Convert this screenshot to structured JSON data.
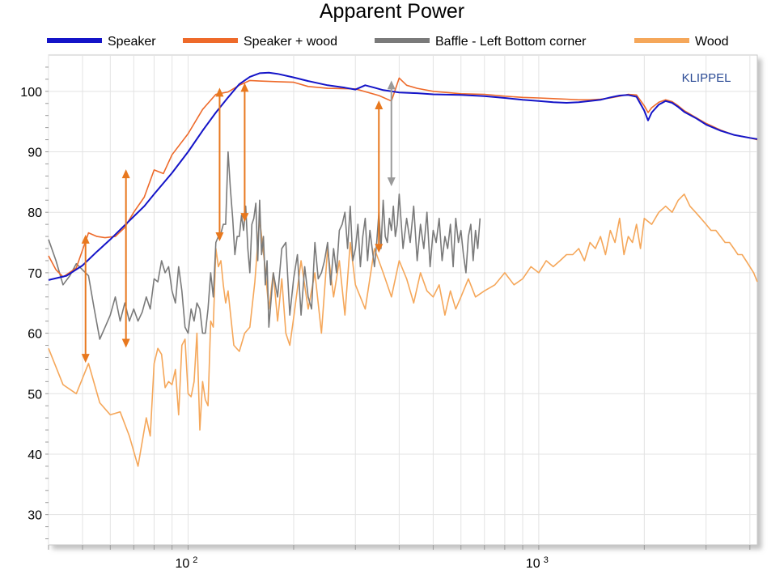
{
  "chart_data": {
    "type": "line",
    "title": "Apparent Power",
    "watermark": "KLIPPEL",
    "xlabel": "",
    "ylabel": "",
    "x_scale": "log",
    "xlim": [
      40,
      4200
    ],
    "ylim": [
      25,
      106
    ],
    "grid": true,
    "legend_position": "top",
    "x_ticks": [
      {
        "value": 100,
        "base": "10",
        "exp": "2"
      },
      {
        "value": 1000,
        "base": "10",
        "exp": "3"
      }
    ],
    "y_ticks": [
      30,
      40,
      50,
      60,
      70,
      80,
      90,
      100
    ],
    "series": [
      {
        "name": "Speaker",
        "color": "#1414c8",
        "x": [
          40,
          45,
          50,
          55,
          60,
          65,
          70,
          75,
          80,
          90,
          100,
          110,
          120,
          130,
          140,
          150,
          160,
          170,
          180,
          200,
          220,
          250,
          280,
          300,
          320,
          340,
          360,
          380,
          400,
          450,
          500,
          600,
          700,
          800,
          900,
          1000,
          1100,
          1200,
          1300,
          1400,
          1500,
          1600,
          1700,
          1800,
          1900,
          2000,
          2050,
          2100,
          2200,
          2300,
          2400,
          2500,
          2600,
          2800,
          3000,
          3300,
          3600,
          4000,
          4200
        ],
        "y": [
          68.8,
          69.5,
          71.2,
          73.5,
          75.5,
          77.5,
          79.3,
          81,
          83,
          86.5,
          90,
          93.5,
          96.5,
          99,
          101.2,
          102.4,
          103,
          103.1,
          102.9,
          102.3,
          101.7,
          101,
          100.6,
          100.3,
          101,
          100.6,
          100.2,
          100,
          99.8,
          99.7,
          99.5,
          99.4,
          99.2,
          98.9,
          98.6,
          98.4,
          98.2,
          98.1,
          98.2,
          98.4,
          98.6,
          99,
          99.3,
          99.4,
          99.1,
          96.8,
          95.2,
          96.5,
          97.8,
          98.4,
          98.1,
          97.4,
          96.6,
          95.6,
          94.5,
          93.5,
          92.8,
          92.3,
          92.1
        ]
      },
      {
        "name": "Speaker + wood",
        "color": "#ee6a2a",
        "x": [
          40,
          42,
          44,
          48,
          52,
          55,
          58,
          62,
          66,
          70,
          75,
          80,
          85,
          90,
          100,
          110,
          120,
          130,
          140,
          150,
          160,
          180,
          200,
          220,
          250,
          300,
          350,
          380,
          400,
          420,
          450,
          500,
          600,
          700,
          800,
          900,
          1000,
          1100,
          1200,
          1300,
          1400,
          1500,
          1600,
          1700,
          1800,
          1900,
          2000,
          2050,
          2100,
          2200,
          2300,
          2400,
          2500,
          2600,
          2800,
          3000,
          3300,
          3600,
          4000,
          4200
        ],
        "y": [
          72.8,
          70.5,
          69.3,
          70.8,
          76.6,
          76,
          75.8,
          76,
          77.5,
          80,
          82.5,
          87,
          86.4,
          89.5,
          93,
          97,
          99.5,
          99.9,
          101,
          101.8,
          101.7,
          101.6,
          101.5,
          100.8,
          100.5,
          100.4,
          99.3,
          98.4,
          102.2,
          101,
          100.5,
          100,
          99.6,
          99.5,
          99.2,
          99,
          98.9,
          98.8,
          98.7,
          98.6,
          98.6,
          98.7,
          98.9,
          99.2,
          99.5,
          99.4,
          97.6,
          96.5,
          97.3,
          98.2,
          98.6,
          98.3,
          97.6,
          96.8,
          95.7,
          94.7,
          93.6,
          92.8,
          92.3,
          92
        ]
      },
      {
        "name": "Baffle - Left Bottom corner",
        "color": "#7a7a7a",
        "x": [
          40,
          42,
          44,
          46,
          48,
          52,
          54,
          56,
          58,
          60,
          62,
          64,
          66,
          68,
          70,
          72,
          74,
          76,
          78,
          80,
          82,
          84,
          86,
          88,
          90,
          92,
          94,
          96,
          98,
          100,
          102,
          104,
          106,
          108,
          110,
          112,
          114,
          116,
          118,
          120,
          122,
          124,
          126,
          128,
          130,
          132,
          134,
          136,
          138,
          140,
          142,
          144,
          146,
          148,
          150,
          152,
          154,
          156,
          158,
          160,
          162,
          164,
          166,
          168,
          170,
          175,
          180,
          185,
          190,
          195,
          200,
          205,
          210,
          215,
          220,
          225,
          230,
          235,
          240,
          245,
          250,
          255,
          260,
          265,
          270,
          275,
          280,
          285,
          290,
          295,
          300,
          305,
          310,
          315,
          320,
          325,
          330,
          335,
          340,
          345,
          350,
          355,
          360,
          365,
          370,
          375,
          380,
          385,
          390,
          395,
          400,
          410,
          420,
          430,
          440,
          450,
          460,
          470,
          480,
          490,
          500,
          510,
          520,
          530,
          540,
          550,
          560,
          570,
          580,
          590,
          600,
          610,
          620,
          630,
          640,
          650,
          660,
          670,
          680
        ],
        "y": [
          75.5,
          72,
          68,
          69.5,
          71.5,
          69.5,
          64,
          59,
          61,
          63,
          66,
          62,
          65,
          62,
          64,
          62,
          63.5,
          66,
          64,
          69,
          68.5,
          72,
          70,
          71,
          67,
          65,
          71,
          67,
          61,
          60,
          64,
          62,
          65,
          64,
          60,
          60,
          64,
          70,
          66,
          75,
          76,
          76.5,
          78,
          78,
          90,
          84,
          79,
          73,
          76,
          76,
          79.5,
          77,
          81,
          74,
          70,
          78,
          79,
          81.5,
          72,
          82,
          73,
          76,
          68,
          72,
          61,
          70,
          66,
          74,
          75,
          63,
          69,
          73,
          63,
          71,
          66,
          64,
          75,
          69,
          70,
          72,
          75,
          68,
          74,
          70,
          77,
          78,
          80,
          74,
          81,
          72,
          74,
          78,
          71,
          76,
          79,
          72,
          77,
          74,
          71,
          75,
          80,
          74,
          82,
          76,
          75,
          79,
          77,
          81,
          76,
          78,
          83,
          74,
          79,
          75,
          81,
          72,
          78,
          74,
          80,
          71,
          77,
          75,
          79,
          72,
          76,
          74,
          78,
          71,
          79,
          75,
          77,
          73,
          70,
          76,
          78,
          72,
          77,
          74,
          79
        ]
      },
      {
        "name": "Wood",
        "color": "#f5a75a",
        "x": [
          40,
          44,
          48,
          52,
          56,
          60,
          64,
          68,
          72,
          76,
          78,
          80,
          82,
          84,
          86,
          88,
          90,
          92,
          94,
          96,
          98,
          100,
          102,
          104,
          106,
          108,
          110,
          112,
          114,
          116,
          118,
          120,
          122,
          124,
          126,
          128,
          130,
          135,
          140,
          145,
          150,
          155,
          160,
          165,
          170,
          175,
          180,
          185,
          190,
          195,
          200,
          210,
          220,
          230,
          240,
          250,
          260,
          270,
          280,
          290,
          300,
          320,
          340,
          360,
          380,
          400,
          420,
          440,
          460,
          480,
          500,
          520,
          540,
          560,
          580,
          600,
          630,
          660,
          700,
          750,
          800,
          850,
          900,
          950,
          1000,
          1050,
          1100,
          1150,
          1200,
          1250,
          1300,
          1350,
          1400,
          1450,
          1500,
          1550,
          1600,
          1650,
          1700,
          1750,
          1800,
          1850,
          1900,
          1950,
          2000,
          2100,
          2200,
          2300,
          2400,
          2500,
          2600,
          2700,
          2800,
          2900,
          3000,
          3100,
          3200,
          3300,
          3400,
          3500,
          3600,
          3700,
          3800,
          3900,
          4000,
          4100,
          4200
        ],
        "y": [
          57.5,
          51.5,
          50,
          55,
          48.5,
          46.5,
          47,
          43,
          38,
          46,
          43,
          55,
          57.5,
          56.5,
          51,
          52,
          51.5,
          54,
          46.5,
          58,
          59,
          50,
          49.5,
          52,
          60,
          44,
          52,
          49,
          48,
          62,
          61,
          74,
          71,
          72,
          68,
          65,
          67,
          58,
          57,
          60,
          61,
          68.5,
          79,
          72,
          64,
          70,
          62,
          69,
          60,
          58,
          62.5,
          72,
          64,
          70,
          60,
          74,
          66,
          72,
          63,
          75,
          68,
          64,
          74,
          70,
          66,
          72,
          69,
          65,
          70,
          67,
          66,
          68,
          63,
          67,
          64,
          66,
          69,
          66,
          67,
          68,
          70,
          68,
          69,
          71,
          70,
          72,
          71,
          72,
          73,
          73,
          74,
          72,
          75,
          74,
          76,
          73,
          77,
          75,
          79,
          73,
          76,
          75,
          78,
          74,
          79,
          78,
          80,
          81,
          80,
          82,
          83,
          81,
          80,
          79,
          78,
          77,
          77,
          76,
          75,
          75,
          74,
          73,
          73,
          72,
          71,
          70,
          68.5
        ]
      }
    ],
    "annotations": [
      {
        "type": "double-arrow",
        "color": "#e8781e",
        "x": 51,
        "y1": 76.3,
        "y2": 55.1
      },
      {
        "type": "double-arrow",
        "color": "#e8781e",
        "x": 66.5,
        "y1": 87.1,
        "y2": 57.6
      },
      {
        "type": "double-arrow",
        "color": "#e8781e",
        "x": 123,
        "y1": 100.6,
        "y2": 75.2
      },
      {
        "type": "double-arrow",
        "color": "#e8781e",
        "x": 145,
        "y1": 101.4,
        "y2": 78.4
      },
      {
        "type": "double-arrow",
        "color": "#e8781e",
        "x": 350,
        "y1": 98.5,
        "y2": 73.3
      },
      {
        "type": "double-arrow",
        "color": "#9a9a9a",
        "x": 380,
        "y1": 101.8,
        "y2": 84.3
      }
    ]
  }
}
